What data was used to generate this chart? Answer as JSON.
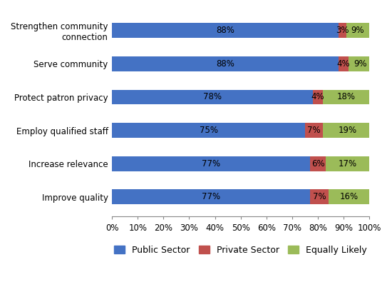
{
  "categories": [
    "Strengthen community\nconnection",
    "Serve community",
    "Protect patron privacy",
    "Employ qualified staff",
    "Increase relevance",
    "Improve quality"
  ],
  "public_sector": [
    88,
    88,
    78,
    75,
    77,
    77
  ],
  "private_sector": [
    3,
    4,
    4,
    7,
    6,
    7
  ],
  "equally_likely": [
    9,
    9,
    18,
    19,
    17,
    16
  ],
  "public_color": "#4472C4",
  "private_color": "#C0504D",
  "equally_color": "#9BBB59",
  "legend_labels": [
    "Public Sector",
    "Private Sector",
    "Equally Likely"
  ],
  "xlim": [
    0,
    100
  ],
  "xtick_labels": [
    "0%",
    "10%",
    "20%",
    "30%",
    "40%",
    "50%",
    "60%",
    "70%",
    "80%",
    "90%",
    "100%"
  ],
  "xtick_values": [
    0,
    10,
    20,
    30,
    40,
    50,
    60,
    70,
    80,
    90,
    100
  ],
  "bar_height": 0.45,
  "label_fontsize": 8.5,
  "tick_fontsize": 8.5,
  "legend_fontsize": 9,
  "fig_width": 5.5,
  "fig_height": 4.16,
  "dpi": 100
}
